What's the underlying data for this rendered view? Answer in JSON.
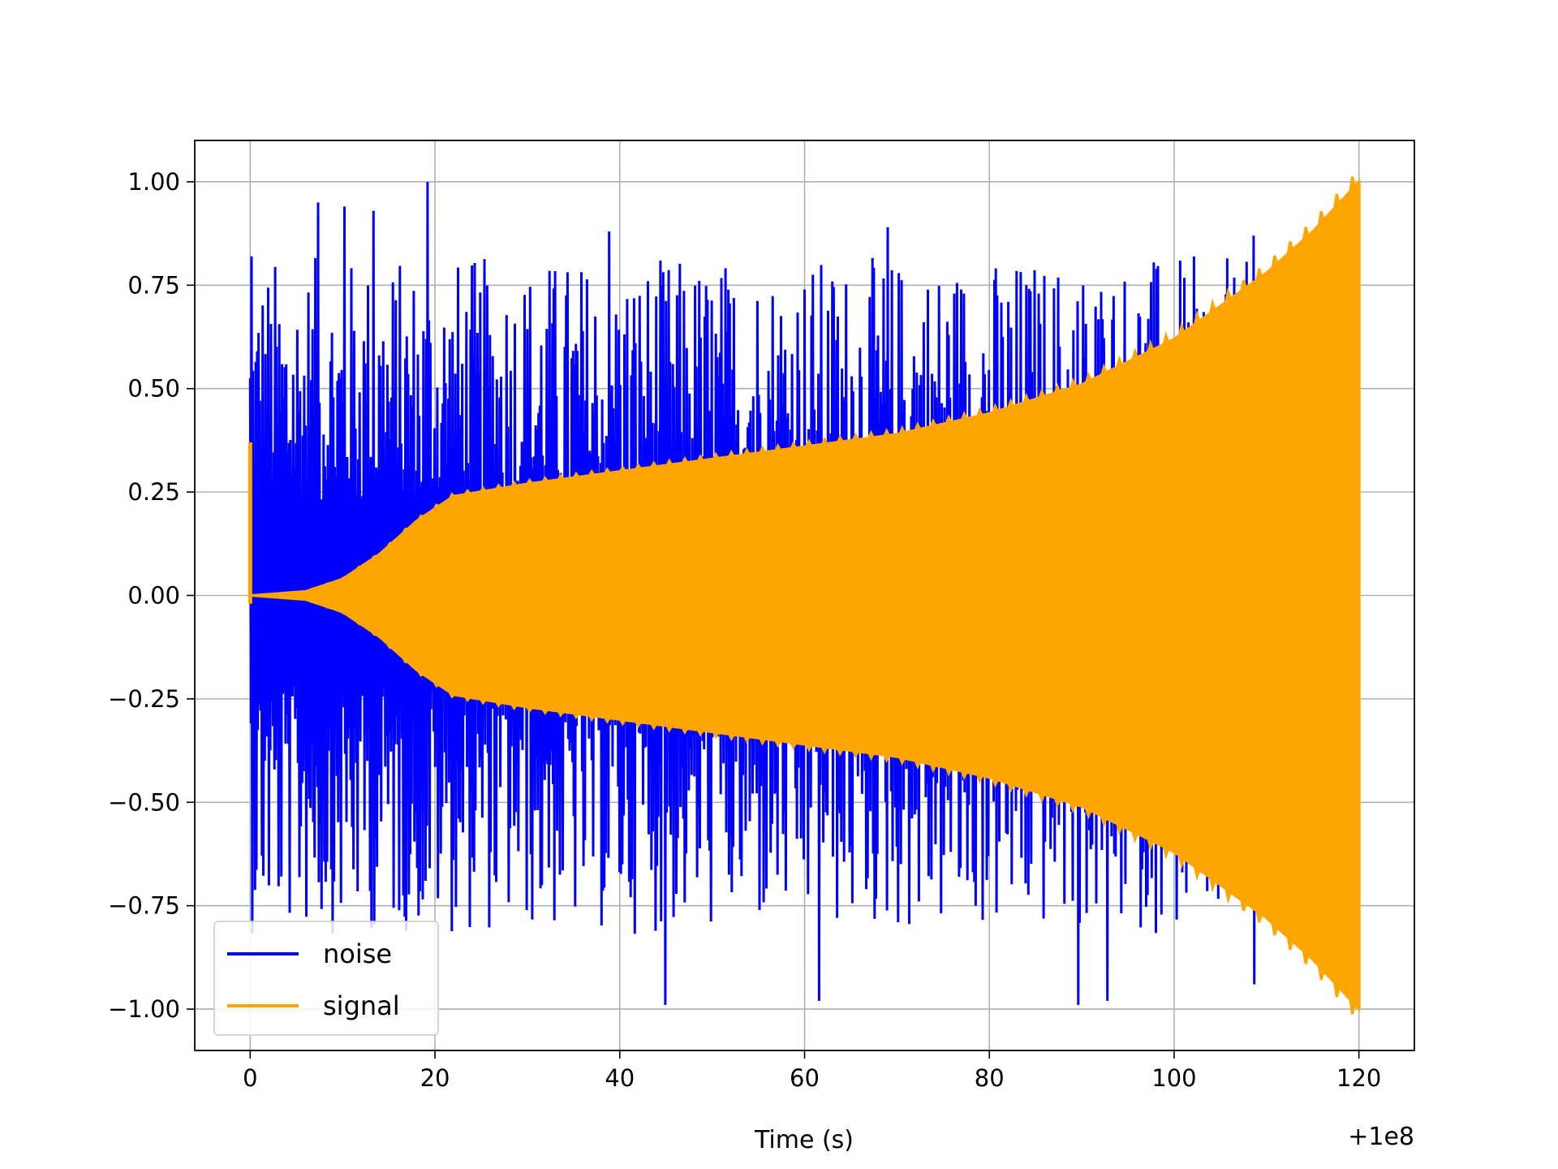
{
  "chart_data": {
    "type": "line",
    "title": "",
    "xlabel": "Time (s)",
    "ylabel": "",
    "x_offset_label": "+1e8",
    "xlim": [
      -6,
      126
    ],
    "ylim": [
      -1.1,
      1.1
    ],
    "x_ticks": [
      0,
      20,
      40,
      60,
      80,
      100,
      120
    ],
    "x_tick_labels": [
      "0",
      "20",
      "40",
      "60",
      "80",
      "100",
      "120"
    ],
    "y_ticks": [
      1.0,
      0.75,
      0.5,
      0.25,
      0.0,
      -0.25,
      -0.5,
      -0.75,
      -1.0
    ],
    "y_tick_labels": [
      "1.00",
      "0.75",
      "0.50",
      "0.25",
      "0.00",
      "−0.25",
      "−0.50",
      "−0.75",
      "−1.00"
    ],
    "grid": true,
    "legend_position": "lower-left",
    "series": [
      {
        "name": "noise",
        "color": "#0000ff",
        "x_range": [
          0,
          120
        ],
        "amplitude_range": [
          -1.0,
          1.0
        ],
        "peaks": [
          {
            "x": 0.1,
            "y": 0.82
          },
          {
            "x": 7.3,
            "y": 0.95
          },
          {
            "x": 10.2,
            "y": 0.94
          },
          {
            "x": 13.3,
            "y": 0.93
          },
          {
            "x": 19.1,
            "y": 1.0
          },
          {
            "x": 38.8,
            "y": 0.88
          },
          {
            "x": 68.9,
            "y": 0.89
          },
          {
            "x": 108.5,
            "y": 0.87
          },
          {
            "x": 44.9,
            "y": -0.99
          },
          {
            "x": 61.6,
            "y": -0.98
          },
          {
            "x": 89.6,
            "y": -0.99
          },
          {
            "x": 92.7,
            "y": -0.98
          },
          {
            "x": 108.6,
            "y": -0.94
          }
        ]
      },
      {
        "name": "signal",
        "color": "#ffa500",
        "x_range": [
          0,
          120
        ],
        "initial_spike": 0.37,
        "envelope": [
          {
            "x": 0,
            "y": 0.0
          },
          {
            "x": 6,
            "y": 0.01
          },
          {
            "x": 10,
            "y": 0.04
          },
          {
            "x": 14,
            "y": 0.1
          },
          {
            "x": 18,
            "y": 0.18
          },
          {
            "x": 22,
            "y": 0.24
          },
          {
            "x": 30,
            "y": 0.27
          },
          {
            "x": 40,
            "y": 0.3
          },
          {
            "x": 50,
            "y": 0.33
          },
          {
            "x": 60,
            "y": 0.36
          },
          {
            "x": 70,
            "y": 0.39
          },
          {
            "x": 80,
            "y": 0.44
          },
          {
            "x": 90,
            "y": 0.51
          },
          {
            "x": 100,
            "y": 0.62
          },
          {
            "x": 110,
            "y": 0.78
          },
          {
            "x": 115,
            "y": 0.88
          },
          {
            "x": 120,
            "y": 1.0
          }
        ]
      }
    ]
  }
}
